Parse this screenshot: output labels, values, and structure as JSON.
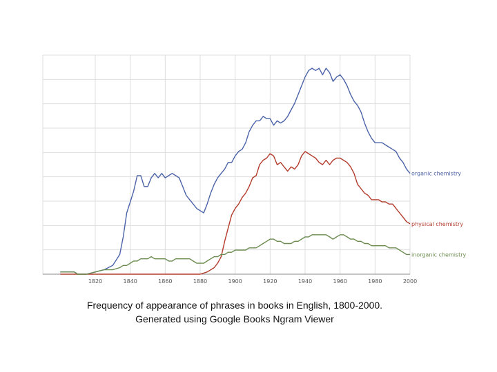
{
  "caption": {
    "line1": "Frequency of appearance of phrases in books in English, 1800-2000.",
    "line2": "Generated using Google Books Ngram Viewer"
  },
  "chart_data": {
    "type": "line",
    "title": "",
    "xlabel": "",
    "ylabel": "",
    "xlim": [
      1800,
      2000
    ],
    "ylim": [
      0,
      100
    ],
    "grid": true,
    "x_ticks": [
      "1820",
      "1840",
      "1860",
      "1880",
      "1900",
      "1920",
      "1940",
      "1960",
      "1980",
      "2000"
    ],
    "series": [
      {
        "name": "organic chemistry",
        "color": "#4a62a8",
        "points": [
          [
            1800,
            1
          ],
          [
            1808,
            1
          ],
          [
            1810,
            0
          ],
          [
            1815,
            0
          ],
          [
            1820,
            1
          ],
          [
            1825,
            2
          ],
          [
            1830,
            4
          ],
          [
            1834,
            9
          ],
          [
            1836,
            17
          ],
          [
            1838,
            28
          ],
          [
            1840,
            33
          ],
          [
            1842,
            38
          ],
          [
            1844,
            45
          ],
          [
            1846,
            45
          ],
          [
            1848,
            40
          ],
          [
            1850,
            40
          ],
          [
            1852,
            44
          ],
          [
            1854,
            46
          ],
          [
            1856,
            44
          ],
          [
            1858,
            46
          ],
          [
            1860,
            44
          ],
          [
            1862,
            45
          ],
          [
            1864,
            46
          ],
          [
            1866,
            45
          ],
          [
            1868,
            44
          ],
          [
            1870,
            40
          ],
          [
            1872,
            36
          ],
          [
            1874,
            34
          ],
          [
            1876,
            32
          ],
          [
            1878,
            30
          ],
          [
            1880,
            29
          ],
          [
            1882,
            28
          ],
          [
            1884,
            32
          ],
          [
            1886,
            37
          ],
          [
            1888,
            41
          ],
          [
            1890,
            44
          ],
          [
            1892,
            46
          ],
          [
            1894,
            48
          ],
          [
            1896,
            51
          ],
          [
            1898,
            51
          ],
          [
            1900,
            54
          ],
          [
            1902,
            56
          ],
          [
            1904,
            57
          ],
          [
            1906,
            60
          ],
          [
            1908,
            65
          ],
          [
            1910,
            68
          ],
          [
            1912,
            70
          ],
          [
            1914,
            70
          ],
          [
            1916,
            72
          ],
          [
            1918,
            71
          ],
          [
            1920,
            71
          ],
          [
            1922,
            68
          ],
          [
            1924,
            70
          ],
          [
            1926,
            69
          ],
          [
            1928,
            70
          ],
          [
            1930,
            72
          ],
          [
            1932,
            75
          ],
          [
            1934,
            78
          ],
          [
            1936,
            82
          ],
          [
            1938,
            86
          ],
          [
            1940,
            90
          ],
          [
            1942,
            93
          ],
          [
            1944,
            94
          ],
          [
            1946,
            93
          ],
          [
            1948,
            94
          ],
          [
            1950,
            91
          ],
          [
            1952,
            94
          ],
          [
            1954,
            92
          ],
          [
            1956,
            88
          ],
          [
            1958,
            90
          ],
          [
            1960,
            91
          ],
          [
            1962,
            89
          ],
          [
            1964,
            86
          ],
          [
            1966,
            82
          ],
          [
            1968,
            79
          ],
          [
            1970,
            77
          ],
          [
            1972,
            74
          ],
          [
            1974,
            69
          ],
          [
            1976,
            65
          ],
          [
            1978,
            62
          ],
          [
            1980,
            60
          ],
          [
            1982,
            60
          ],
          [
            1984,
            60
          ],
          [
            1986,
            59
          ],
          [
            1988,
            58
          ],
          [
            1990,
            57
          ],
          [
            1992,
            56
          ],
          [
            1994,
            53
          ],
          [
            1996,
            51
          ],
          [
            1998,
            48
          ],
          [
            2000,
            46
          ]
        ]
      },
      {
        "name": "physical chemistry",
        "color": "#b33a2a",
        "points": [
          [
            1800,
            0
          ],
          [
            1880,
            0
          ],
          [
            1884,
            1
          ],
          [
            1888,
            3
          ],
          [
            1890,
            5
          ],
          [
            1892,
            8
          ],
          [
            1894,
            15
          ],
          [
            1896,
            21
          ],
          [
            1898,
            27
          ],
          [
            1900,
            30
          ],
          [
            1902,
            32
          ],
          [
            1904,
            35
          ],
          [
            1906,
            37
          ],
          [
            1908,
            40
          ],
          [
            1910,
            44
          ],
          [
            1912,
            45
          ],
          [
            1914,
            50
          ],
          [
            1916,
            52
          ],
          [
            1918,
            53
          ],
          [
            1920,
            55
          ],
          [
            1922,
            54
          ],
          [
            1924,
            50
          ],
          [
            1926,
            51
          ],
          [
            1928,
            49
          ],
          [
            1930,
            47
          ],
          [
            1932,
            49
          ],
          [
            1934,
            48
          ],
          [
            1936,
            50
          ],
          [
            1938,
            54
          ],
          [
            1940,
            56
          ],
          [
            1942,
            55
          ],
          [
            1944,
            54
          ],
          [
            1946,
            53
          ],
          [
            1948,
            51
          ],
          [
            1950,
            50
          ],
          [
            1952,
            52
          ],
          [
            1954,
            50
          ],
          [
            1956,
            52
          ],
          [
            1958,
            53
          ],
          [
            1960,
            53
          ],
          [
            1962,
            52
          ],
          [
            1964,
            51
          ],
          [
            1966,
            49
          ],
          [
            1968,
            46
          ],
          [
            1970,
            41
          ],
          [
            1972,
            39
          ],
          [
            1974,
            37
          ],
          [
            1976,
            36
          ],
          [
            1978,
            34
          ],
          [
            1980,
            34
          ],
          [
            1982,
            34
          ],
          [
            1984,
            33
          ],
          [
            1986,
            33
          ],
          [
            1988,
            32
          ],
          [
            1990,
            32
          ],
          [
            1992,
            30
          ],
          [
            1994,
            28
          ],
          [
            1996,
            26
          ],
          [
            1998,
            24
          ],
          [
            2000,
            23
          ]
        ]
      },
      {
        "name": "inorganic chemistry",
        "color": "#6a8b4e",
        "points": [
          [
            1800,
            1
          ],
          [
            1808,
            1
          ],
          [
            1810,
            0
          ],
          [
            1815,
            0
          ],
          [
            1820,
            1
          ],
          [
            1825,
            2
          ],
          [
            1830,
            2
          ],
          [
            1834,
            3
          ],
          [
            1836,
            4
          ],
          [
            1838,
            4
          ],
          [
            1840,
            5
          ],
          [
            1842,
            6
          ],
          [
            1844,
            6
          ],
          [
            1846,
            7
          ],
          [
            1848,
            7
          ],
          [
            1850,
            7
          ],
          [
            1852,
            8
          ],
          [
            1854,
            7
          ],
          [
            1856,
            7
          ],
          [
            1858,
            7
          ],
          [
            1860,
            7
          ],
          [
            1862,
            6
          ],
          [
            1864,
            6
          ],
          [
            1866,
            7
          ],
          [
            1868,
            7
          ],
          [
            1870,
            7
          ],
          [
            1872,
            7
          ],
          [
            1874,
            7
          ],
          [
            1876,
            6
          ],
          [
            1878,
            5
          ],
          [
            1880,
            5
          ],
          [
            1882,
            5
          ],
          [
            1884,
            6
          ],
          [
            1886,
            7
          ],
          [
            1888,
            8
          ],
          [
            1890,
            8
          ],
          [
            1892,
            9
          ],
          [
            1894,
            9
          ],
          [
            1896,
            10
          ],
          [
            1898,
            10
          ],
          [
            1900,
            11
          ],
          [
            1902,
            11
          ],
          [
            1904,
            11
          ],
          [
            1906,
            11
          ],
          [
            1908,
            12
          ],
          [
            1910,
            12
          ],
          [
            1912,
            12
          ],
          [
            1914,
            13
          ],
          [
            1916,
            14
          ],
          [
            1918,
            15
          ],
          [
            1920,
            16
          ],
          [
            1922,
            16
          ],
          [
            1924,
            15
          ],
          [
            1926,
            15
          ],
          [
            1928,
            14
          ],
          [
            1930,
            14
          ],
          [
            1932,
            14
          ],
          [
            1934,
            15
          ],
          [
            1936,
            15
          ],
          [
            1938,
            16
          ],
          [
            1940,
            17
          ],
          [
            1942,
            17
          ],
          [
            1944,
            18
          ],
          [
            1946,
            18
          ],
          [
            1948,
            18
          ],
          [
            1950,
            18
          ],
          [
            1952,
            18
          ],
          [
            1954,
            17
          ],
          [
            1956,
            16
          ],
          [
            1958,
            17
          ],
          [
            1960,
            18
          ],
          [
            1962,
            18
          ],
          [
            1964,
            17
          ],
          [
            1966,
            16
          ],
          [
            1968,
            16
          ],
          [
            1970,
            15
          ],
          [
            1972,
            15
          ],
          [
            1974,
            14
          ],
          [
            1976,
            14
          ],
          [
            1978,
            13
          ],
          [
            1980,
            13
          ],
          [
            1982,
            13
          ],
          [
            1984,
            13
          ],
          [
            1986,
            13
          ],
          [
            1988,
            12
          ],
          [
            1990,
            12
          ],
          [
            1992,
            12
          ],
          [
            1994,
            11
          ],
          [
            1996,
            10
          ],
          [
            1998,
            9
          ],
          [
            2000,
            9
          ]
        ]
      }
    ]
  }
}
